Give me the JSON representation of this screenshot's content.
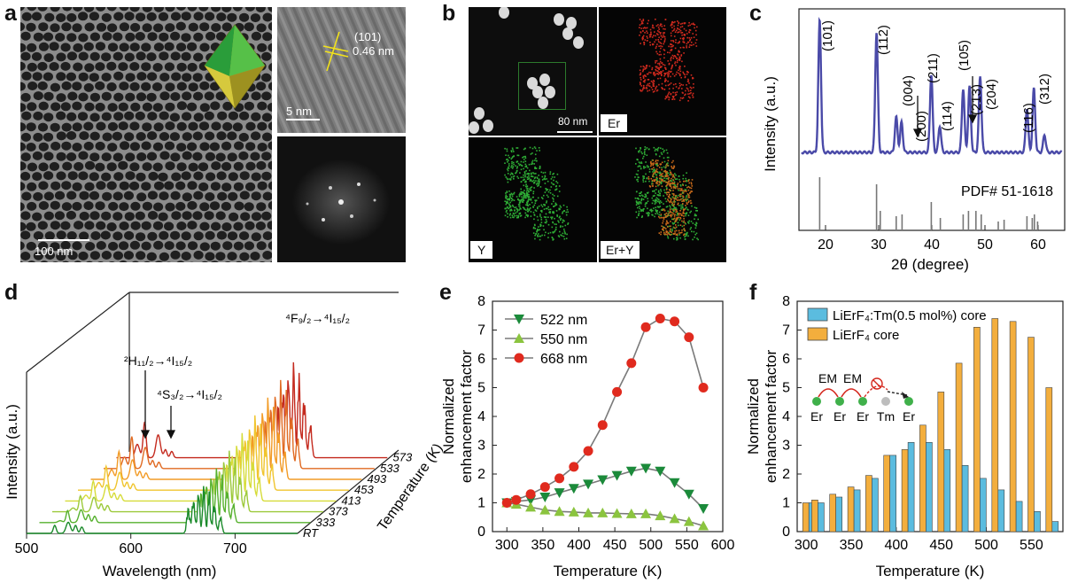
{
  "panels": {
    "a": "a",
    "b": "b",
    "c": "c",
    "d": "d",
    "e": "e",
    "f": "f"
  },
  "panel_a": {
    "scale_main": "100 nm",
    "scale_hrtem": "5 nm",
    "plane": "(101)",
    "spacing": "0.46 nm"
  },
  "panel_b": {
    "scale": "80 nm",
    "maps": [
      "Er",
      "Y",
      "Er+Y"
    ],
    "colors": {
      "Er": "#d02a1e",
      "Y": "#2fae36",
      "merge": "#c96a1a"
    }
  },
  "panel_c": {
    "ylabel": "Intensity (a.u.)",
    "xlabel": "2θ (degree)",
    "xticks": [
      "20",
      "30",
      "40",
      "50",
      "60"
    ],
    "pdf": "PDF# 51-1618",
    "peaks": [
      "(101)",
      "(112)",
      "(004)",
      "(200)",
      "(211)",
      "(114)",
      "(105)",
      "(213)",
      "(204)",
      "(116)",
      "(312)"
    ],
    "color": "#4a4aa8"
  },
  "panel_d": {
    "ylabel": "Intensity (a.u.)",
    "xlabel": "Wavelength (nm)",
    "xticks": [
      "500",
      "600",
      "700"
    ],
    "zlabel": "Temperature (K)",
    "temps": [
      "RT",
      "333",
      "373",
      "413",
      "453",
      "493",
      "533",
      "573"
    ],
    "transitions": {
      "h": "²H₁₁/₂→⁴I₁₅/₂",
      "s": "⁴S₃/₂→⁴I₁₅/₂",
      "f": "⁴F₉/₂→⁴I₁₅/₂"
    }
  },
  "chart_data": [
    {
      "type": "line",
      "panel": "e",
      "xlabel": "Temperature (K)",
      "ylabel": "Normalized enhancement factor",
      "xlim": [
        280,
        600
      ],
      "ylim": [
        0,
        8
      ],
      "xticks": [
        300,
        350,
        400,
        450,
        500,
        550,
        600
      ],
      "yticks": [
        0,
        1,
        2,
        3,
        4,
        5,
        6,
        7,
        8
      ],
      "legend": "top-left",
      "x": [
        300,
        313,
        333,
        353,
        373,
        393,
        413,
        433,
        453,
        473,
        493,
        513,
        533,
        553,
        573
      ],
      "series": [
        {
          "name": "522 nm",
          "marker": "triangle-down",
          "color": "#1b8a3a",
          "values": [
            1.0,
            1.05,
            1.1,
            1.2,
            1.35,
            1.5,
            1.65,
            1.8,
            1.95,
            2.1,
            2.2,
            2.1,
            1.7,
            1.3,
            0.8
          ]
        },
        {
          "name": "550 nm",
          "marker": "triangle-up",
          "color": "#8bc43f",
          "values": [
            1.0,
            0.95,
            0.85,
            0.75,
            0.7,
            0.68,
            0.65,
            0.65,
            0.63,
            0.62,
            0.62,
            0.55,
            0.45,
            0.35,
            0.2
          ]
        },
        {
          "name": "668 nm",
          "marker": "circle",
          "color": "#e02a1e",
          "values": [
            1.0,
            1.1,
            1.3,
            1.55,
            1.85,
            2.25,
            2.8,
            3.7,
            4.85,
            5.85,
            7.1,
            7.4,
            7.3,
            6.75,
            5.0
          ]
        }
      ]
    },
    {
      "type": "bar",
      "panel": "f",
      "xlabel": "Temperature (K)",
      "ylabel": "Normalized enhancement factor",
      "xlim": [
        290,
        585
      ],
      "ylim": [
        0,
        8
      ],
      "xticks": [
        300,
        350,
        400,
        450,
        500,
        550
      ],
      "yticks": [
        0,
        1,
        2,
        3,
        4,
        5,
        6,
        7,
        8
      ],
      "legend": "top-left",
      "x": [
        303,
        313,
        333,
        353,
        373,
        393,
        413,
        433,
        453,
        473,
        493,
        513,
        533,
        553,
        573
      ],
      "series": [
        {
          "name": "LiErF₄:Tm(0.5 mol%) core",
          "color": "#5bbcdf",
          "values": [
            1.0,
            1.0,
            1.2,
            1.45,
            1.85,
            2.65,
            3.1,
            3.1,
            2.85,
            2.3,
            1.85,
            1.45,
            1.05,
            0.7,
            0.35
          ]
        },
        {
          "name": "LiErF₄ core",
          "color": "#f3ae3d",
          "values": [
            1.0,
            1.1,
            1.3,
            1.55,
            1.95,
            2.65,
            2.85,
            3.7,
            4.85,
            5.85,
            7.1,
            7.4,
            7.3,
            6.75,
            5.0
          ]
        }
      ],
      "inset": {
        "em": [
          "EM",
          "EM"
        ],
        "ions": [
          "Er",
          "Er",
          "Er",
          "Tm",
          "Er"
        ]
      }
    }
  ]
}
